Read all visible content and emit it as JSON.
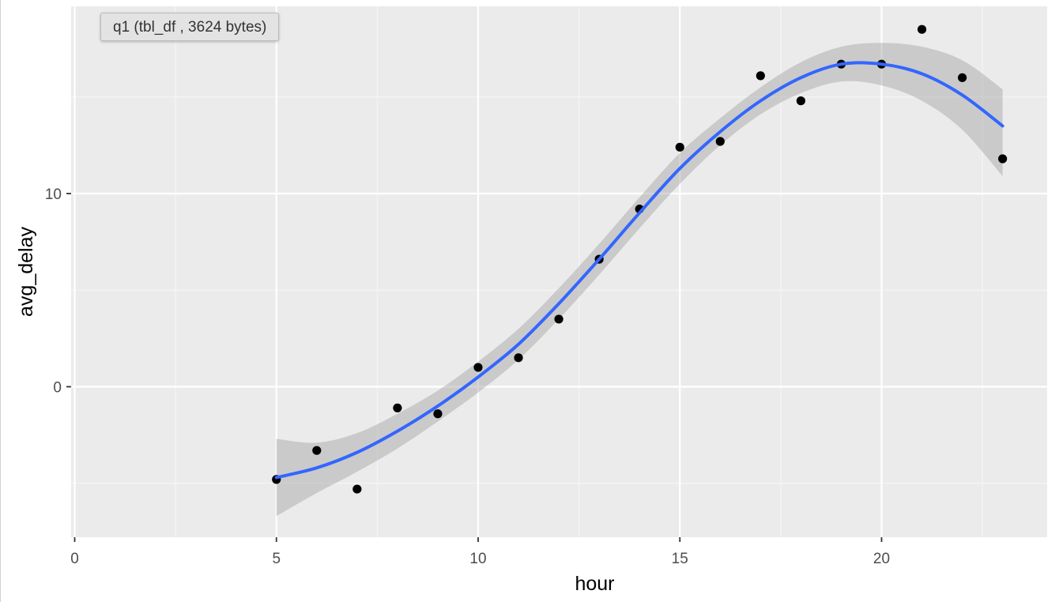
{
  "tooltip": {
    "text": "q1 (tbl_df , 3624 bytes)"
  },
  "colors": {
    "panel": "#ebebeb",
    "grid_major": "#ffffff",
    "grid_minor": "#f5f5f5",
    "point": "#000000",
    "smooth_line": "#3366ff",
    "ribbon": "#999999"
  },
  "chart_data": {
    "type": "scatter",
    "xlabel": "hour",
    "ylabel": "avg_delay",
    "xlim": [
      0,
      24
    ],
    "ylim": [
      -7.8,
      19.4
    ],
    "x_ticks": [
      0,
      5,
      10,
      15,
      20
    ],
    "y_ticks": [
      0,
      10
    ],
    "x_tick_labels": [
      "0",
      "5",
      "10",
      "15",
      "20"
    ],
    "y_tick_labels": [
      "0",
      "10"
    ],
    "grid": true,
    "points": [
      {
        "x": 5,
        "y": -4.8
      },
      {
        "x": 6,
        "y": -3.3
      },
      {
        "x": 7,
        "y": -5.3
      },
      {
        "x": 8,
        "y": -1.1
      },
      {
        "x": 9,
        "y": -1.4
      },
      {
        "x": 10,
        "y": 1.0
      },
      {
        "x": 11,
        "y": 1.5
      },
      {
        "x": 12,
        "y": 3.5
      },
      {
        "x": 13,
        "y": 6.6
      },
      {
        "x": 14,
        "y": 9.2
      },
      {
        "x": 15,
        "y": 12.4
      },
      {
        "x": 16,
        "y": 12.7
      },
      {
        "x": 17,
        "y": 16.1
      },
      {
        "x": 18,
        "y": 14.8
      },
      {
        "x": 19,
        "y": 16.7
      },
      {
        "x": 20,
        "y": 16.7
      },
      {
        "x": 21,
        "y": 18.5
      },
      {
        "x": 22,
        "y": 16.0
      },
      {
        "x": 23,
        "y": 11.8
      }
    ],
    "smooth": {
      "x": [
        5,
        6,
        7,
        8,
        9,
        10,
        11,
        12,
        13,
        14,
        15,
        16,
        17,
        18,
        19,
        20,
        21,
        22,
        23
      ],
      "y": [
        -4.7,
        -4.2,
        -3.4,
        -2.3,
        -1.0,
        0.5,
        2.2,
        4.3,
        6.6,
        9.0,
        11.3,
        13.2,
        14.8,
        16.0,
        16.7,
        16.7,
        16.2,
        15.1,
        13.5
      ],
      "lower": [
        -6.7,
        -5.5,
        -4.4,
        -3.2,
        -1.8,
        -0.3,
        1.4,
        3.5,
        5.8,
        8.2,
        10.5,
        12.5,
        14.1,
        15.2,
        15.8,
        15.6,
        14.8,
        13.3,
        10.9
      ],
      "upper": [
        -2.7,
        -2.9,
        -2.4,
        -1.4,
        -0.2,
        1.3,
        3.0,
        5.1,
        7.4,
        9.8,
        12.1,
        13.9,
        15.5,
        16.8,
        17.6,
        17.8,
        17.6,
        16.9,
        15.4
      ]
    }
  }
}
